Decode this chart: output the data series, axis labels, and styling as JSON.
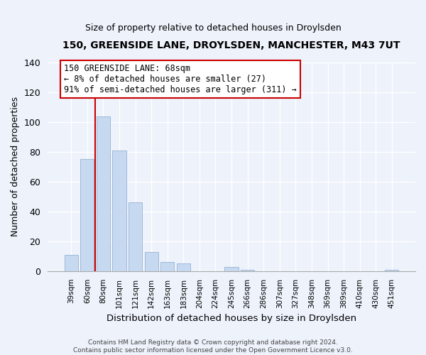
{
  "title": "150, GREENSIDE LANE, DROYLSDEN, MANCHESTER, M43 7UT",
  "subtitle": "Size of property relative to detached houses in Droylsden",
  "xlabel": "Distribution of detached houses by size in Droylsden",
  "ylabel": "Number of detached properties",
  "bar_labels": [
    "39sqm",
    "60sqm",
    "80sqm",
    "101sqm",
    "121sqm",
    "142sqm",
    "163sqm",
    "183sqm",
    "204sqm",
    "224sqm",
    "245sqm",
    "266sqm",
    "286sqm",
    "307sqm",
    "327sqm",
    "348sqm",
    "369sqm",
    "389sqm",
    "410sqm",
    "430sqm",
    "451sqm"
  ],
  "bar_values": [
    11,
    75,
    104,
    81,
    46,
    13,
    6,
    5,
    0,
    0,
    3,
    1,
    0,
    0,
    0,
    0,
    0,
    0,
    0,
    0,
    1
  ],
  "bar_color": "#c6d9f1",
  "bar_edge_color": "#a0b8d8",
  "ylim": [
    0,
    140
  ],
  "yticks": [
    0,
    20,
    40,
    60,
    80,
    100,
    120,
    140
  ],
  "redline_x": 1.5,
  "marker_color": "#cc0000",
  "annotation_line0": "150 GREENSIDE LANE: 68sqm",
  "annotation_line1": "← 8% of detached houses are smaller (27)",
  "annotation_line2": "91% of semi-detached houses are larger (311) →",
  "annotation_box_color": "#ffffff",
  "annotation_border_color": "#cc0000",
  "footer_line1": "Contains HM Land Registry data © Crown copyright and database right 2024.",
  "footer_line2": "Contains public sector information licensed under the Open Government Licence v3.0.",
  "background_color": "#edf2fb"
}
